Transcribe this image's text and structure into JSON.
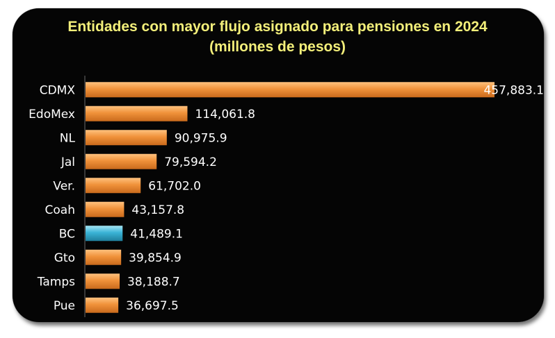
{
  "chart_data": {
    "type": "bar",
    "orientation": "horizontal",
    "title": "Entidades con mayor flujo asignado para pensiones en 2024",
    "subtitle": "(millones de pesos)",
    "categories": [
      "CDMX",
      "EdoMex",
      "NL",
      "Jal",
      "Ver.",
      "Coah",
      "BC",
      "Gto",
      "Tamps",
      "Pue"
    ],
    "values": [
      457883.1,
      114061.8,
      90975.9,
      79594.2,
      61702.0,
      43157.8,
      41489.1,
      39854.9,
      38188.7,
      36697.5
    ],
    "value_labels": [
      "457,883.1",
      "114,061.8",
      "90,975.9",
      "79,594.2",
      "61,702.0",
      "43,157.8",
      "41,489.1",
      "39,854.9",
      "38,188.7",
      "36,697.5"
    ],
    "highlight_category": "BC",
    "colors": {
      "bar": "#f0923a",
      "bar_light": "#ffc27e",
      "bar_dark": "#c96a1c",
      "highlight": "#3ab4d6",
      "highlight_light": "#a6e6f5",
      "highlight_dark": "#1f7f9c",
      "background": "#050505",
      "title": "#f3ef7a",
      "text": "#ffffff"
    },
    "grid": false,
    "legend": "none",
    "xlim": [
      0,
      457883.1
    ]
  }
}
